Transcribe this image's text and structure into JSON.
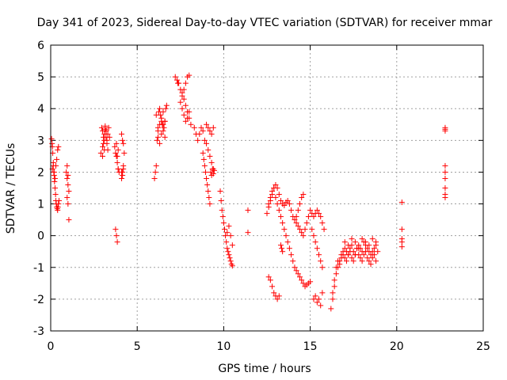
{
  "chart_data": {
    "type": "scatter",
    "title": "Day 341 of 2023, Sidereal Day-to-day VTEC variation (SDTVAR) for receiver mmar",
    "xlabel": "GPS time / hours",
    "ylabel": "SDTVAR / TECUs",
    "xlim": [
      0,
      25
    ],
    "ylim": [
      -3,
      6
    ],
    "xticks": [
      "0",
      "5",
      "10",
      "15",
      "20",
      "25"
    ],
    "yticks": [
      "-3",
      "-2",
      "-1",
      "0",
      "1",
      "2",
      "3",
      "4",
      "5",
      "6"
    ],
    "grid": true,
    "marker": "plus",
    "color": "#ff0000",
    "series": [
      {
        "name": "SDTVAR",
        "x": [
          0.05,
          0.08,
          0.1,
          0.12,
          0.15,
          0.18,
          0.2,
          0.22,
          0.25,
          0.28,
          0.3,
          0.32,
          0.35,
          0.38,
          0.4,
          0.42,
          0.45,
          0.48,
          0.1,
          0.15,
          0.2,
          0.25,
          0.3,
          0.35,
          0.4,
          0.45,
          0.9,
          0.95,
          1.0,
          1.05,
          0.95,
          1.0,
          1.05,
          0.95,
          1.0,
          2.9,
          2.95,
          3.0,
          3.05,
          3.1,
          3.15,
          3.2,
          3.25,
          3.3,
          3.35,
          3.4,
          3.0,
          3.05,
          3.1,
          3.15,
          3.2,
          3.25,
          3.3,
          3.0,
          3.1,
          3.2,
          3.7,
          3.75,
          3.8,
          3.85,
          3.9,
          3.95,
          3.75,
          3.8,
          3.85,
          3.9,
          3.8,
          3.85,
          3.9,
          4.1,
          4.15,
          4.2,
          4.25,
          4.1,
          4.15,
          4.2,
          4.1,
          4.15,
          4.2,
          6.0,
          6.05,
          6.1,
          6.15,
          6.2,
          6.25,
          6.3,
          6.35,
          6.4,
          6.45,
          6.5,
          6.55,
          6.6,
          6.65,
          6.7,
          6.2,
          6.3,
          6.4,
          6.5,
          6.6,
          6.1,
          6.2,
          6.3,
          6.4,
          6.5,
          6.6,
          7.2,
          7.3,
          7.4,
          7.5,
          7.6,
          7.7,
          7.8,
          7.9,
          8.0,
          7.5,
          7.6,
          7.7,
          7.8,
          7.9,
          8.0,
          8.1,
          7.6,
          7.7,
          7.8,
          7.9,
          8.0,
          7.35,
          8.3,
          8.4,
          8.5,
          8.6,
          8.7,
          8.8,
          8.9,
          9.0,
          9.1,
          9.2,
          9.3,
          9.4,
          8.8,
          8.85,
          8.9,
          8.95,
          9.0,
          9.05,
          9.1,
          9.15,
          9.2,
          9.25,
          9.3,
          9.35,
          9.4,
          9.45,
          9.0,
          9.1,
          9.2,
          9.3,
          9.4,
          9.8,
          9.85,
          9.9,
          9.95,
          10.0,
          10.05,
          10.1,
          10.15,
          10.2,
          10.25,
          10.3,
          10.35,
          10.4,
          10.45,
          10.5,
          10.2,
          10.3,
          10.4,
          10.5,
          11.4,
          11.4,
          12.5,
          12.6,
          12.7,
          12.8,
          12.9,
          13.0,
          13.1,
          13.2,
          13.3,
          13.4,
          13.5,
          13.6,
          13.7,
          13.8,
          13.9,
          14.0,
          14.1,
          14.2,
          14.3,
          14.4,
          14.5,
          14.6,
          12.6,
          12.7,
          12.8,
          12.9,
          13.0,
          13.1,
          13.2,
          13.3,
          13.4,
          13.5,
          13.6,
          13.7,
          13.8,
          13.9,
          14.0,
          14.1,
          14.2,
          14.3,
          14.4,
          14.5,
          14.6,
          14.7,
          14.8,
          14.9,
          15.0,
          15.1,
          15.2,
          15.3,
          15.4,
          15.5,
          15.6,
          15.7,
          12.6,
          12.7,
          12.8,
          12.9,
          13.0,
          13.1,
          13.2,
          13.3,
          13.35,
          13.4,
          14.2,
          14.3,
          14.4,
          14.5,
          14.6,
          14.7,
          14.8,
          14.9,
          15.0,
          15.1,
          15.2,
          15.3,
          15.4,
          15.5,
          15.6,
          15.7,
          15.8,
          15.2,
          15.3,
          15.4,
          15.5,
          15.6,
          15.7,
          16.2,
          16.3,
          16.4,
          16.5,
          16.6,
          16.7,
          16.8,
          16.9,
          17.0,
          17.1,
          17.2,
          17.3,
          17.4,
          17.5,
          17.6,
          17.7,
          17.8,
          17.9,
          18.0,
          18.1,
          18.2,
          18.3,
          18.4,
          18.5,
          18.6,
          18.7,
          18.8,
          18.9,
          16.3,
          16.4,
          16.5,
          16.6,
          16.7,
          16.8,
          16.9,
          17.0,
          17.1,
          17.2,
          17.3,
          17.4,
          17.5,
          17.6,
          17.7,
          17.8,
          17.9,
          18.0,
          18.1,
          18.2,
          18.3,
          18.4,
          18.5,
          18.6,
          18.7,
          18.8,
          17.0,
          17.2,
          17.4,
          17.6,
          17.8,
          18.0,
          18.2,
          18.4,
          18.6,
          18.8,
          20.3,
          20.3,
          20.3,
          20.3,
          20.3,
          22.8,
          22.8,
          22.8,
          22.8,
          22.8,
          22.8,
          22.8,
          22.8,
          22.8
        ],
        "y": [
          3.05,
          2.9,
          2.8,
          2.6,
          2.2,
          2.0,
          1.9,
          1.7,
          1.5,
          1.3,
          1.1,
          1.0,
          0.9,
          0.85,
          0.8,
          0.9,
          1.0,
          1.1,
          2.1,
          2.3,
          2.0,
          1.8,
          2.2,
          2.4,
          2.7,
          2.8,
          2.0,
          1.8,
          1.6,
          1.4,
          1.2,
          1.0,
          0.5,
          2.2,
          1.9,
          2.6,
          3.4,
          3.3,
          3.1,
          3.0,
          3.45,
          3.3,
          2.9,
          3.2,
          3.4,
          3.1,
          2.8,
          2.9,
          3.2,
          3.35,
          3.3,
          3.0,
          2.7,
          2.5,
          2.7,
          3.1,
          2.8,
          2.6,
          2.5,
          2.3,
          2.1,
          2.0,
          0.2,
          0.0,
          -0.2,
          2.7,
          2.9,
          2.5,
          2.1,
          3.2,
          3.0,
          2.9,
          2.6,
          2.0,
          1.9,
          2.1,
          1.8,
          2.0,
          2.2,
          1.8,
          2.0,
          2.2,
          3.0,
          3.4,
          3.9,
          4.0,
          3.8,
          3.6,
          3.5,
          3.3,
          3.4,
          3.6,
          4.0,
          4.1,
          3.3,
          3.5,
          3.7,
          3.9,
          3.6,
          3.8,
          3.1,
          2.9,
          3.2,
          3.5,
          3.1,
          5.0,
          4.9,
          4.8,
          4.6,
          4.5,
          4.6,
          4.8,
          5.0,
          5.05,
          4.2,
          4.0,
          3.8,
          3.6,
          3.7,
          3.9,
          3.5,
          4.4,
          4.3,
          4.1,
          3.9,
          3.7,
          4.8,
          3.4,
          3.2,
          3.0,
          3.2,
          3.4,
          3.3,
          3.0,
          2.9,
          2.7,
          2.5,
          2.3,
          2.1,
          2.6,
          2.4,
          2.2,
          2.0,
          1.8,
          1.6,
          1.4,
          1.2,
          1.0,
          2.0,
          1.9,
          2.1,
          1.95,
          2.05,
          3.5,
          3.4,
          3.3,
          3.2,
          3.4,
          1.4,
          1.1,
          0.8,
          0.6,
          0.4,
          0.2,
          0.0,
          -0.2,
          -0.4,
          -0.5,
          -0.6,
          -0.7,
          -0.8,
          -0.9,
          -0.95,
          0.1,
          0.3,
          0.0,
          -0.3,
          0.8,
          0.1,
          0.7,
          0.9,
          1.1,
          1.3,
          1.5,
          1.6,
          1.5,
          1.3,
          1.1,
          1.0,
          0.95,
          1.05,
          1.1,
          1.0,
          0.8,
          0.6,
          0.5,
          0.6,
          0.8,
          1.0,
          1.2,
          1.3,
          1.0,
          1.2,
          1.4,
          1.5,
          1.2,
          1.0,
          0.8,
          0.6,
          0.4,
          0.2,
          0.0,
          -0.2,
          -0.4,
          -0.6,
          -0.8,
          -1.0,
          -1.1,
          -1.2,
          -1.3,
          -1.4,
          -1.5,
          -1.6,
          -1.55,
          -1.5,
          -1.45,
          0.2,
          0.0,
          -0.2,
          -0.4,
          -0.6,
          -0.8,
          -1.0,
          -1.3,
          -1.4,
          -1.6,
          -1.8,
          -1.9,
          -2.0,
          -1.9,
          -0.3,
          -0.4,
          -0.5,
          0.4,
          0.3,
          0.2,
          0.1,
          0.0,
          0.2,
          0.4,
          0.6,
          0.8,
          0.7,
          0.6,
          0.7,
          0.8,
          0.7,
          0.6,
          0.4,
          0.2,
          -2.0,
          -1.9,
          -2.1,
          -2.0,
          -2.2,
          -1.8,
          -2.3,
          -2.0,
          -1.6,
          -1.2,
          -1.0,
          -0.8,
          -0.6,
          -0.5,
          -0.4,
          -0.5,
          -0.6,
          -0.4,
          -0.3,
          -0.5,
          -0.6,
          -0.4,
          -0.3,
          -0.4,
          -0.5,
          -0.2,
          -0.3,
          -0.4,
          -0.5,
          -0.6,
          -0.5,
          -0.4,
          -0.3,
          -0.5,
          -1.8,
          -1.4,
          -1.0,
          -0.8,
          -0.9,
          -0.7,
          -0.6,
          -0.7,
          -0.8,
          -0.6,
          -0.5,
          -0.7,
          -0.8,
          -0.6,
          -0.4,
          -0.6,
          -0.7,
          -0.8,
          -0.6,
          -0.5,
          -0.7,
          -0.8,
          -0.9,
          -0.7,
          -0.6,
          -0.8,
          -0.2,
          -0.3,
          -0.1,
          -0.2,
          -0.4,
          -0.1,
          -0.2,
          -0.3,
          -0.1,
          -0.2,
          1.05,
          0.2,
          -0.1,
          -0.2,
          -0.35,
          3.4,
          3.3,
          3.35,
          2.2,
          2.0,
          1.8,
          1.5,
          1.3,
          1.2
        ]
      }
    ]
  }
}
